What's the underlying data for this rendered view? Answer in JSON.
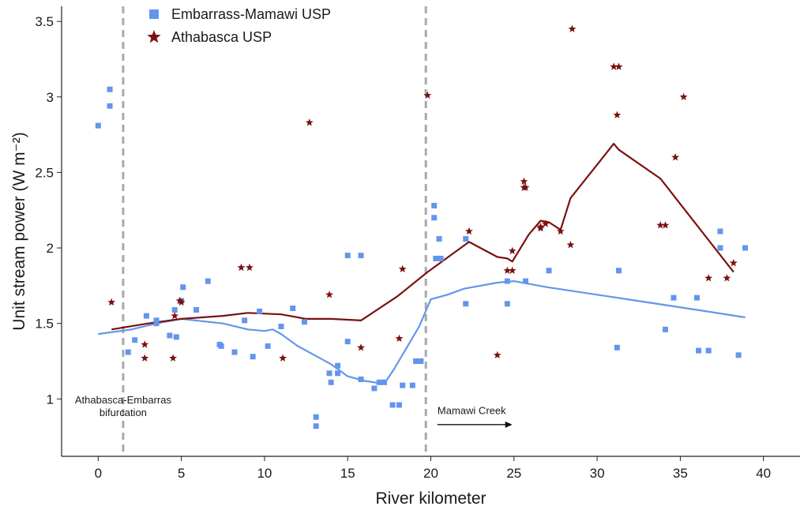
{
  "chart_data": {
    "type": "scatter",
    "xlabel": "River kilometer",
    "ylabel": "Unit stream power (W m⁻²)",
    "xlim": [
      -2.2,
      42.2
    ],
    "ylim": [
      0.62,
      3.6
    ],
    "xticks": [
      0,
      5,
      10,
      15,
      20,
      25,
      30,
      35,
      40
    ],
    "yticks": [
      1,
      1.5,
      2,
      2.5,
      3,
      3.5
    ],
    "legend_position": "top-left",
    "grid": false,
    "vlines": [
      1.5,
      19.7
    ],
    "annotations": [
      {
        "lines": [
          "Athabasca-Embarras",
          "bifurcation"
        ],
        "x": 1.5,
        "y": 0.97
      },
      {
        "lines": [
          "Mamawi Creek"
        ],
        "x": 20.4,
        "y": 0.9,
        "arrow_to_x": 24.9,
        "arrow_y": 0.83
      }
    ],
    "series": [
      {
        "name": "Embarrass-Mamawi USP",
        "marker": "square",
        "color": "#6495ED",
        "points": [
          [
            0,
            2.81
          ],
          [
            0.7,
            3.05
          ],
          [
            0.7,
            2.94
          ],
          [
            1.8,
            1.31
          ],
          [
            2.2,
            1.39
          ],
          [
            2.9,
            1.55
          ],
          [
            3.5,
            1.5
          ],
          [
            3.5,
            1.52
          ],
          [
            4.3,
            1.42
          ],
          [
            4.6,
            1.59
          ],
          [
            4.7,
            1.41
          ],
          [
            5.0,
            1.65
          ],
          [
            5.1,
            1.74
          ],
          [
            5.9,
            1.59
          ],
          [
            6.6,
            1.78
          ],
          [
            7.3,
            1.36
          ],
          [
            7.4,
            1.35
          ],
          [
            8.2,
            1.31
          ],
          [
            8.8,
            1.52
          ],
          [
            9.3,
            1.28
          ],
          [
            9.7,
            1.58
          ],
          [
            10.2,
            1.35
          ],
          [
            11.0,
            1.48
          ],
          [
            11.7,
            1.6
          ],
          [
            12.4,
            1.51
          ],
          [
            13.1,
            0.88
          ],
          [
            13.1,
            0.82
          ],
          [
            13.9,
            1.17
          ],
          [
            14.0,
            1.11
          ],
          [
            14.4,
            1.22
          ],
          [
            14.4,
            1.17
          ],
          [
            15.0,
            1.95
          ],
          [
            15.0,
            1.38
          ],
          [
            15.8,
            1.95
          ],
          [
            15.8,
            1.13
          ],
          [
            16.6,
            1.07
          ],
          [
            16.9,
            1.11
          ],
          [
            17.2,
            1.11
          ],
          [
            17.7,
            0.96
          ],
          [
            18.1,
            0.96
          ],
          [
            18.3,
            1.09
          ],
          [
            18.9,
            1.09
          ],
          [
            19.1,
            1.25
          ],
          [
            19.4,
            1.25
          ],
          [
            20.2,
            2.28
          ],
          [
            20.2,
            2.2
          ],
          [
            20.3,
            1.93
          ],
          [
            20.5,
            2.06
          ],
          [
            20.6,
            1.93
          ],
          [
            22.1,
            1.63
          ],
          [
            22.1,
            2.06
          ],
          [
            24.6,
            1.78
          ],
          [
            24.6,
            1.63
          ],
          [
            25.7,
            1.78
          ],
          [
            27.1,
            1.85
          ],
          [
            31.2,
            1.34
          ],
          [
            31.3,
            1.85
          ],
          [
            34.1,
            1.46
          ],
          [
            34.6,
            1.67
          ],
          [
            36.0,
            1.67
          ],
          [
            36.1,
            1.32
          ],
          [
            36.7,
            1.32
          ],
          [
            37.4,
            2.11
          ],
          [
            37.4,
            2.0
          ],
          [
            38.5,
            1.29
          ],
          [
            38.9,
            2.0
          ]
        ],
        "trend": [
          [
            0,
            1.43
          ],
          [
            2,
            1.46
          ],
          [
            3.5,
            1.5
          ],
          [
            5,
            1.53
          ],
          [
            7.5,
            1.5
          ],
          [
            9,
            1.46
          ],
          [
            10,
            1.45
          ],
          [
            10.5,
            1.46
          ],
          [
            11,
            1.43
          ],
          [
            12,
            1.35
          ],
          [
            13,
            1.29
          ],
          [
            14,
            1.23
          ],
          [
            15,
            1.15
          ],
          [
            16,
            1.12
          ],
          [
            17.2,
            1.1
          ],
          [
            17.8,
            1.2
          ],
          [
            18.5,
            1.33
          ],
          [
            19.3,
            1.48
          ],
          [
            20.0,
            1.66
          ],
          [
            21,
            1.69
          ],
          [
            22,
            1.73
          ],
          [
            24,
            1.77
          ],
          [
            25,
            1.78
          ],
          [
            27,
            1.74
          ],
          [
            30,
            1.69
          ],
          [
            33,
            1.64
          ],
          [
            36,
            1.59
          ],
          [
            38.9,
            1.54
          ]
        ]
      },
      {
        "name": "Athabasca USP",
        "marker": "star",
        "color": "#7B1010",
        "points": [
          [
            0.8,
            1.64
          ],
          [
            2.8,
            1.36
          ],
          [
            2.8,
            1.27
          ],
          [
            4.5,
            1.27
          ],
          [
            4.6,
            1.55
          ],
          [
            4.9,
            1.65
          ],
          [
            5.0,
            1.64
          ],
          [
            8.6,
            1.87
          ],
          [
            9.1,
            1.87
          ],
          [
            11.1,
            1.27
          ],
          [
            12.7,
            2.83
          ],
          [
            13.9,
            1.69
          ],
          [
            15.8,
            1.34
          ],
          [
            18.1,
            1.4
          ],
          [
            18.3,
            1.86
          ],
          [
            19.8,
            3.01
          ],
          [
            22.3,
            2.11
          ],
          [
            24.0,
            1.29
          ],
          [
            24.6,
            1.85
          ],
          [
            24.9,
            1.98
          ],
          [
            24.9,
            1.85
          ],
          [
            25.6,
            2.44
          ],
          [
            25.6,
            2.4
          ],
          [
            25.7,
            2.4
          ],
          [
            26.6,
            2.13
          ],
          [
            26.6,
            2.14
          ],
          [
            26.9,
            2.16
          ],
          [
            27.8,
            2.11
          ],
          [
            28.4,
            2.02
          ],
          [
            28.5,
            3.45
          ],
          [
            31.0,
            3.2
          ],
          [
            31.3,
            3.2
          ],
          [
            31.2,
            2.88
          ],
          [
            33.8,
            2.15
          ],
          [
            34.1,
            2.15
          ],
          [
            34.7,
            2.6
          ],
          [
            35.2,
            3.0
          ],
          [
            36.7,
            1.8
          ],
          [
            37.8,
            1.8
          ],
          [
            38.2,
            1.9
          ]
        ],
        "trend": [
          [
            0.8,
            1.46
          ],
          [
            3,
            1.5
          ],
          [
            5,
            1.53
          ],
          [
            7.5,
            1.55
          ],
          [
            9,
            1.57
          ],
          [
            11,
            1.56
          ],
          [
            12.5,
            1.53
          ],
          [
            14,
            1.53
          ],
          [
            15.8,
            1.52
          ],
          [
            18,
            1.68
          ],
          [
            19.8,
            1.84
          ],
          [
            22.3,
            2.04
          ],
          [
            24,
            1.94
          ],
          [
            24.6,
            1.93
          ],
          [
            24.9,
            1.91
          ],
          [
            25.9,
            2.09
          ],
          [
            26.6,
            2.18
          ],
          [
            27.1,
            2.17
          ],
          [
            27.8,
            2.12
          ],
          [
            28.4,
            2.33
          ],
          [
            31.0,
            2.69
          ],
          [
            31.3,
            2.65
          ],
          [
            33.8,
            2.46
          ],
          [
            38.2,
            1.84
          ]
        ]
      }
    ]
  }
}
